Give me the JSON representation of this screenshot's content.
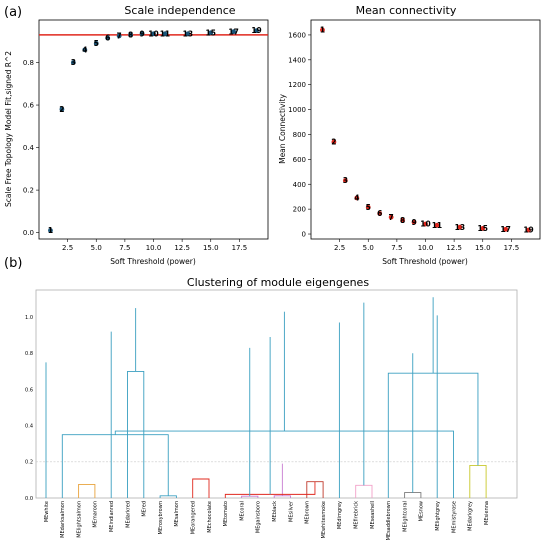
{
  "chart_data": [
    {
      "panel_label": "(a)",
      "type": "scatter",
      "title": "Scale independence",
      "xlabel": "Soft Threshold (power)",
      "ylabel": "Scale Free Topology Model Fit,signed R^2",
      "xlim": [
        0,
        20
      ],
      "ylim": [
        -0.03,
        1.0
      ],
      "xticks": [
        "2.5",
        "5.0",
        "7.5",
        "10.0",
        "12.5",
        "15.0",
        "17.5"
      ],
      "yticks": [
        "0.0",
        "0.2",
        "0.4",
        "0.6",
        "0.8"
      ],
      "threshold_line": 0.93,
      "threshold_color": "#e0281e",
      "marker_color": "#1a5478",
      "points": [
        {
          "label": "1",
          "x": 1,
          "y": 0.01
        },
        {
          "label": "2",
          "x": 2,
          "y": 0.58
        },
        {
          "label": "3",
          "x": 3,
          "y": 0.8
        },
        {
          "label": "4",
          "x": 4,
          "y": 0.86
        },
        {
          "label": "5",
          "x": 5,
          "y": 0.89
        },
        {
          "label": "6",
          "x": 6,
          "y": 0.915
        },
        {
          "label": "7",
          "x": 7,
          "y": 0.925
        },
        {
          "label": "8",
          "x": 8,
          "y": 0.93
        },
        {
          "label": "9",
          "x": 9,
          "y": 0.935
        },
        {
          "label": "10",
          "x": 10,
          "y": 0.935
        },
        {
          "label": "11",
          "x": 11,
          "y": 0.935
        },
        {
          "label": "13",
          "x": 13,
          "y": 0.935
        },
        {
          "label": "15",
          "x": 15,
          "y": 0.94
        },
        {
          "label": "17",
          "x": 17,
          "y": 0.945
        },
        {
          "label": "19",
          "x": 19,
          "y": 0.95
        }
      ]
    },
    {
      "type": "scatter",
      "title": "Mean connectivity",
      "xlabel": "Soft Threshold (power)",
      "ylabel": "Mean Connectivity",
      "xlim": [
        0,
        20
      ],
      "ylim": [
        -40,
        1720
      ],
      "xticks": [
        "2.5",
        "5.0",
        "7.5",
        "10.0",
        "12.5",
        "15.0",
        "17.5"
      ],
      "yticks": [
        "0",
        "200",
        "400",
        "600",
        "800",
        "1000",
        "1200",
        "1400",
        "1600"
      ],
      "marker_color": "#e0281e",
      "points": [
        {
          "label": "1",
          "x": 1,
          "y": 1640
        },
        {
          "label": "2",
          "x": 2,
          "y": 740
        },
        {
          "label": "3",
          "x": 3,
          "y": 430
        },
        {
          "label": "4",
          "x": 4,
          "y": 290
        },
        {
          "label": "5",
          "x": 5,
          "y": 215
        },
        {
          "label": "6",
          "x": 6,
          "y": 165
        },
        {
          "label": "7",
          "x": 7,
          "y": 135
        },
        {
          "label": "8",
          "x": 8,
          "y": 110
        },
        {
          "label": "9",
          "x": 9,
          "y": 95
        },
        {
          "label": "10",
          "x": 10,
          "y": 80
        },
        {
          "label": "11",
          "x": 11,
          "y": 70
        },
        {
          "label": "13",
          "x": 13,
          "y": 55
        },
        {
          "label": "15",
          "x": 15,
          "y": 45
        },
        {
          "label": "17",
          "x": 17,
          "y": 38
        },
        {
          "label": "19",
          "x": 19,
          "y": 32
        }
      ]
    },
    {
      "panel_label": "(b)",
      "type": "dendrogram",
      "title": "Clustering of module eigengenes",
      "ylim": [
        0,
        1.15
      ],
      "yticks": [
        "0.0",
        "0.2",
        "0.4",
        "0.6",
        "0.8",
        "1.0"
      ],
      "cut_height": 0.2,
      "link_color": "#3a9fc0",
      "leaves": [
        "MEwhite",
        "MEdarksalmon",
        "MElightsalmon",
        "MEmaroon",
        "MEindianred",
        "MEdarkred",
        "MEred",
        "MErosybrown",
        "MEsalmon",
        "MEorangered",
        "MEchocolate",
        "MEtomato",
        "MEcoral",
        "MEgainsboro",
        "MEblack",
        "MEsilver",
        "MEbrown",
        "MEwhitesmoke",
        "MEdimgrey",
        "MEfirebrick",
        "MEseashell",
        "MEsaddlebrown",
        "MElightcoral",
        "MEsnow",
        "MElightgrey",
        "MEmistyrose",
        "MEdarkgrey",
        "MEsienna"
      ],
      "merges": [
        {
          "a": "L2",
          "b": "L3",
          "h": 0.075,
          "color": "#e8a33c"
        },
        {
          "a": "L7",
          "b": "L8",
          "h": 0.012,
          "color": "#3a9fc0"
        },
        {
          "a": "L9",
          "b": "L10",
          "h": 0.105,
          "color": "#e0281e"
        },
        {
          "a": "L12",
          "b": "L13",
          "h": 0.01,
          "color": "#c77bd0"
        },
        {
          "a": "L14",
          "b": "L15",
          "h": 0.012,
          "color": "#c77bd0"
        },
        {
          "a": "M4",
          "b": "M5",
          "h": 0.19,
          "color": "#c77bd0"
        },
        {
          "a": "L16",
          "b": "L17",
          "h": 0.09,
          "color": "#c0392b"
        },
        {
          "a": "L19",
          "b": "L20",
          "h": 0.07,
          "color": "#f2a0c8"
        },
        {
          "a": "L22",
          "b": "L23",
          "h": 0.03,
          "color": "#7a7a7a"
        },
        {
          "a": "L26",
          "b": "L27",
          "h": 0.18,
          "color": "#c8c82a"
        },
        {
          "a": "L1",
          "b": "M1",
          "h": 0.35,
          "color": "#3a9fc0"
        },
        {
          "a": "L0",
          "b": "M11",
          "h": 0.75,
          "color": "#3a9fc0"
        },
        {
          "a": "L5",
          "b": "L6",
          "h": 0.7,
          "color": "#3a9fc0"
        },
        {
          "a": "M6",
          "b": "L11",
          "h": 0.02,
          "color": "#e0281e"
        },
        {
          "a": "M3",
          "b": "M14",
          "h": 0.83,
          "color": "#3a9fc0"
        },
        {
          "a": "M13",
          "b": "M15",
          "h": 0.89,
          "color": "#3a9fc0"
        },
        {
          "a": "L4",
          "b": "M16",
          "h": 0.92,
          "color": "#3a9fc0"
        },
        {
          "a": "M12",
          "b": "M17",
          "h": 1.05,
          "color": "#3a9fc0"
        },
        {
          "a": "L21",
          "b": "M9",
          "h": 0.69,
          "color": "#3a9fc0"
        },
        {
          "a": "M8",
          "b": "M19",
          "h": 0.8,
          "color": "#3a9fc0"
        },
        {
          "a": "L18",
          "b": "M20",
          "h": 0.97,
          "color": "#3a9fc0"
        },
        {
          "a": "M10",
          "b": "L25",
          "h": 0.37,
          "color": "#3a9fc0"
        },
        {
          "a": "L24",
          "b": "M22",
          "h": 1.01,
          "color": "#3a9fc0"
        },
        {
          "a": "M21",
          "b": "M23",
          "h": 1.03,
          "color": "#3a9fc0"
        },
        {
          "a": "M7",
          "b": "M24",
          "h": 1.08,
          "color": "#3a9fc0"
        },
        {
          "a": "M18",
          "b": "M25",
          "h": 1.11,
          "color": "#3a9fc0"
        }
      ]
    }
  ]
}
